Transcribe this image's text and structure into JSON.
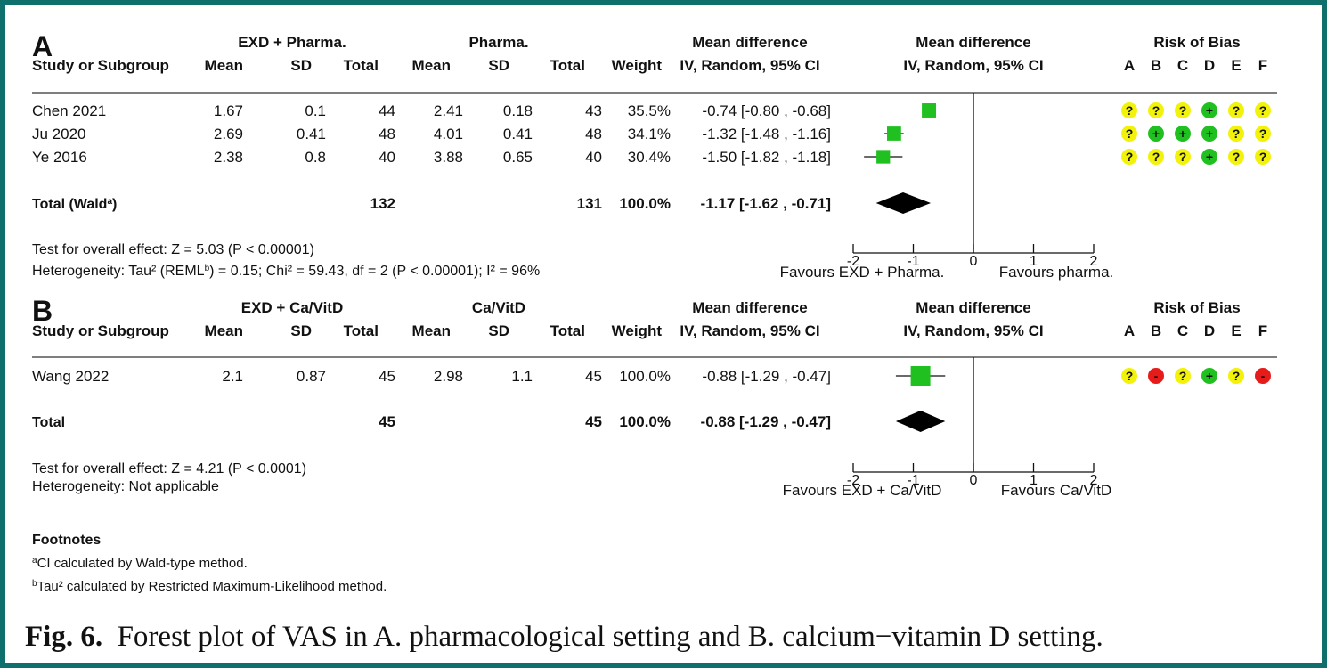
{
  "columns": {
    "study": "Study or Subgroup",
    "mean": "Mean",
    "sd": "SD",
    "total": "Total",
    "weight": "Weight",
    "md_title": "Mean difference",
    "md_sub": "IV, Random, 95% CI",
    "rob_title": "Risk of Bias",
    "rob_letters": [
      "A",
      "B",
      "C",
      "D",
      "E",
      "F"
    ]
  },
  "panels": [
    {
      "label": "A",
      "exp_group": "EXD + Pharma.",
      "ctrl_group": "Pharma.",
      "studies": [
        {
          "name": "Chen 2021",
          "exp_mean": "1.67",
          "exp_sd": "0.1",
          "exp_total": "44",
          "ctrl_mean": "2.41",
          "ctrl_sd": "0.18",
          "ctrl_total": "43",
          "weight": "35.5%",
          "ci_text": "-0.74 [-0.80 , -0.68]",
          "rob": [
            "?",
            "?",
            "?",
            "+",
            "?",
            "?"
          ]
        },
        {
          "name": "Ju 2020",
          "exp_mean": "2.69",
          "exp_sd": "0.41",
          "exp_total": "48",
          "ctrl_mean": "4.01",
          "ctrl_sd": "0.41",
          "ctrl_total": "48",
          "weight": "34.1%",
          "ci_text": "-1.32 [-1.48 , -1.16]",
          "rob": [
            "?",
            "+",
            "+",
            "+",
            "?",
            "?"
          ]
        },
        {
          "name": "Ye 2016",
          "exp_mean": "2.38",
          "exp_sd": "0.8",
          "exp_total": "40",
          "ctrl_mean": "3.88",
          "ctrl_sd": "0.65",
          "ctrl_total": "40",
          "weight": "30.4%",
          "ci_text": "-1.50 [-1.82 , -1.18]",
          "rob": [
            "?",
            "?",
            "?",
            "+",
            "?",
            "?"
          ]
        }
      ],
      "total": {
        "label": "Total (Wald",
        "label_sup": "a",
        "label_end": ")",
        "exp_total": "132",
        "ctrl_total": "131",
        "weight": "100.0%",
        "ci_text": "-1.17 [-1.62 , -0.71]"
      },
      "overall_effect": "Test for overall effect: Z = 5.03 (P < 0.00001)",
      "heterogeneity": {
        "pre": "Heterogeneity: Tau² (REML",
        "sup": "b",
        "post": ") = 0.15; Chi² = 59.43, df = 2 (P < 0.00001); I² = 96%"
      },
      "favours_left": "Favours EXD + Pharma.",
      "favours_right": "Favours pharma."
    },
    {
      "label": "B",
      "exp_group": "EXD + Ca/VitD",
      "ctrl_group": "Ca/VitD",
      "studies": [
        {
          "name": "Wang 2022",
          "exp_mean": "2.1",
          "exp_sd": "0.87",
          "exp_total": "45",
          "ctrl_mean": "2.98",
          "ctrl_sd": "1.1",
          "ctrl_total": "45",
          "weight": "100.0%",
          "ci_text": "-0.88 [-1.29 , -0.47]",
          "rob": [
            "?",
            "-",
            "?",
            "+",
            "?",
            "-"
          ]
        }
      ],
      "total": {
        "label": "Total",
        "label_sup": "",
        "label_end": "",
        "exp_total": "45",
        "ctrl_total": "45",
        "weight": "100.0%",
        "ci_text": "-0.88 [-1.29 , -0.47]"
      },
      "overall_effect": "Test for overall effect: Z = 4.21 (P < 0.0001)",
      "heterogeneity": {
        "pre": "Heterogeneity: Not applicable",
        "sup": "",
        "post": ""
      },
      "favours_left": "Favours EXD + Ca/VitD",
      "favours_right": "Favours Ca/VitD"
    }
  ],
  "footnotes": {
    "title": "Footnotes",
    "a": {
      "sup": "a",
      "text": "CI calculated by Wald-type method."
    },
    "b": {
      "sup": "b",
      "text": "Tau² calculated by Restricted Maximum-Likelihood method."
    }
  },
  "caption": {
    "label": "Fig. 6.",
    "text": "Forest plot of VAS in A. pharmacological setting and B. calcium−vitamin D setting."
  },
  "colors": {
    "frame": "#0e6f6c",
    "square": "#1fc01f",
    "diamond": "#000000",
    "rob_unclear": "#f2f20a",
    "rob_low": "#1fc01f",
    "rob_high": "#e81b1b"
  },
  "chart_data": [
    {
      "type": "forest",
      "panel": "A",
      "ticks": [
        "-2",
        "-1",
        "0",
        "1",
        "2"
      ],
      "xlim": [
        -2,
        2
      ],
      "studies": [
        {
          "name": "Chen 2021",
          "md": -0.74,
          "ci": [
            -0.8,
            -0.68
          ],
          "weight": 35.5
        },
        {
          "name": "Ju 2020",
          "md": -1.32,
          "ci": [
            -1.48,
            -1.16
          ],
          "weight": 34.1
        },
        {
          "name": "Ye 2016",
          "md": -1.5,
          "ci": [
            -1.82,
            -1.18
          ],
          "weight": 30.4
        }
      ],
      "pooled": {
        "md": -1.17,
        "ci": [
          -1.62,
          -0.71
        ]
      }
    },
    {
      "type": "forest",
      "panel": "B",
      "ticks": [
        "-2",
        "-1",
        "0",
        "1",
        "2"
      ],
      "xlim": [
        -2,
        2
      ],
      "studies": [
        {
          "name": "Wang 2022",
          "md": -0.88,
          "ci": [
            -1.29,
            -0.47
          ],
          "weight": 100.0
        }
      ],
      "pooled": {
        "md": -0.88,
        "ci": [
          -1.29,
          -0.47
        ]
      }
    }
  ]
}
